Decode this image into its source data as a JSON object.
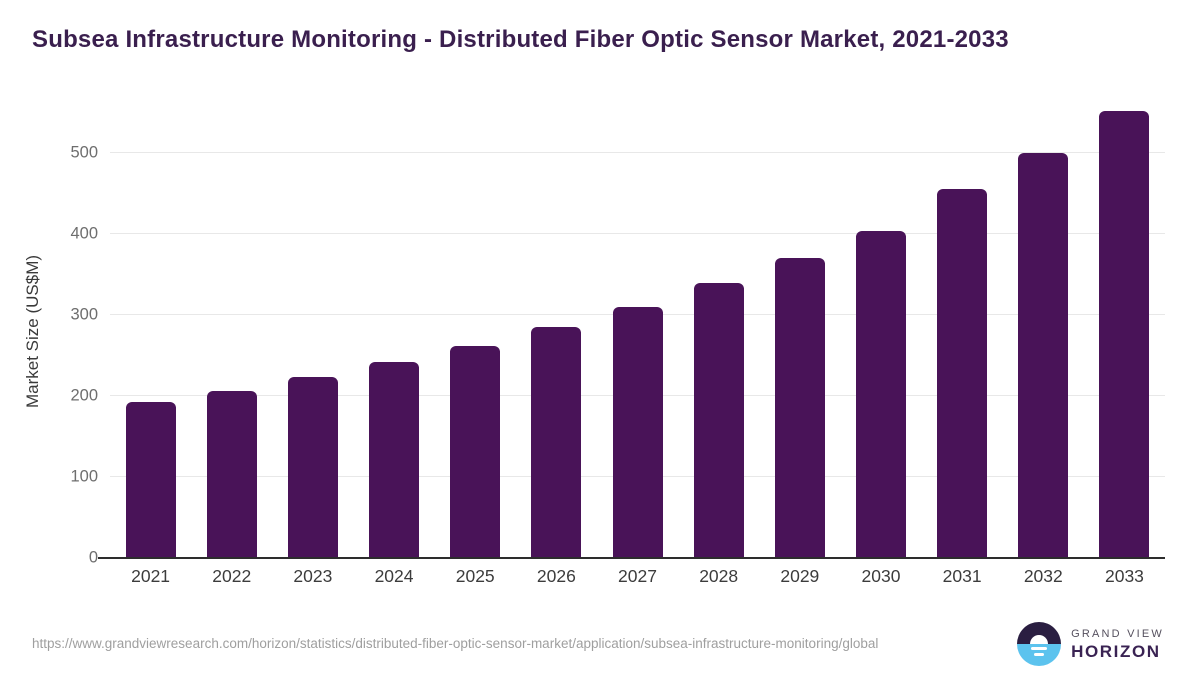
{
  "page": {
    "title": "Subsea Infrastructure Monitoring - Distributed Fiber Optic Sensor Market, 2021-2033"
  },
  "chart_data": {
    "type": "bar",
    "title": "Subsea Infrastructure Monitoring - Distributed Fiber Optic Sensor Market, 2021-2033",
    "categories": [
      "2021",
      "2022",
      "2023",
      "2024",
      "2025",
      "2026",
      "2027",
      "2028",
      "2029",
      "2030",
      "2031",
      "2032",
      "2033"
    ],
    "values": [
      192,
      206,
      223,
      242,
      262,
      285,
      310,
      339,
      370,
      404,
      455,
      500,
      551
    ],
    "xlabel": "",
    "ylabel": "Market Size (US$M)",
    "ylim": [
      0,
      560
    ],
    "yticks": [
      0,
      100,
      200,
      300,
      400,
      500
    ],
    "grid": "horizontal",
    "legend": "none",
    "bar_color": "#491358"
  },
  "footer": {
    "source_url": "https://www.grandviewresearch.com/horizon/statistics/distributed-fiber-optic-sensor-market/application/subsea-infrastructure-monitoring/global",
    "logo": {
      "icon": "horizon-sun-circle-icon",
      "brand_top": "GRAND VIEW",
      "brand_bottom": "HORIZON"
    }
  },
  "colors": {
    "title": "#3a1f4e",
    "bar": "#491358",
    "gridline": "#e8e8e8",
    "axis_line": "#2d2d2d",
    "y_tick_label": "#6e6e6e",
    "x_tick_label": "#3c3c3c",
    "source_url": "#9f9f9f",
    "logo_dark": "#2a1e41",
    "logo_blue": "#5cc3ee",
    "logo_text_top": "#55505e",
    "logo_text_bottom": "#3a2353"
  }
}
